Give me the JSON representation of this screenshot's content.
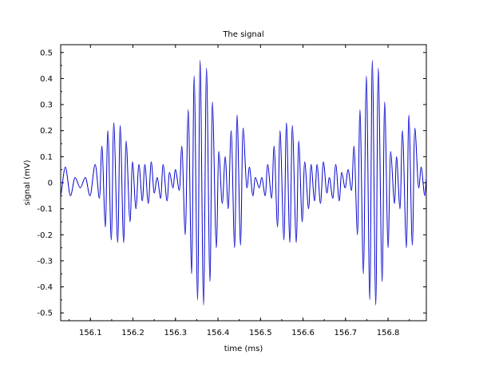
{
  "chart_data": {
    "type": "line",
    "title": "The signal",
    "xlabel": "time (ms)",
    "ylabel": "signal (mV)",
    "xlim": [
      156.03,
      156.89
    ],
    "ylim": [
      -0.53,
      0.53
    ],
    "xticks": [
      156.1,
      156.2,
      156.3,
      156.4,
      156.5,
      156.6,
      156.7,
      156.8
    ],
    "xtick_labels": [
      "156.1",
      "156.2",
      "156.3",
      "156.4",
      "156.5",
      "156.6",
      "156.7",
      "156.8"
    ],
    "yticks": [
      0.5,
      0.4,
      0.3,
      0.2,
      0.1,
      0,
      -0.1,
      -0.2,
      -0.3,
      -0.4,
      -0.5
    ],
    "ytick_labels": [
      "0.5",
      "0.4",
      "0.3",
      "0.2",
      "0.1",
      "0",
      "-0.1",
      "-0.2",
      "-0.3",
      "-0.4",
      "-0.5"
    ],
    "grid": false,
    "line_color": "#0000cc",
    "series": [
      {
        "x": [
          156.03,
          156.041,
          156.053,
          156.064,
          156.076,
          156.088,
          156.099,
          156.111,
          156.121,
          156.127,
          156.135,
          156.141,
          156.149,
          156.155,
          156.164,
          156.17,
          156.178,
          156.184,
          156.193,
          156.199,
          156.207,
          156.214,
          156.222,
          156.228,
          156.236,
          156.243,
          156.25,
          156.257,
          156.265,
          156.271,
          156.28,
          156.286,
          156.294,
          156.3,
          156.309,
          156.315,
          156.323,
          156.33,
          156.338,
          156.344,
          156.352,
          156.358,
          156.366,
          156.373,
          156.381,
          156.387,
          156.396,
          156.402,
          156.41,
          156.417,
          156.424,
          156.431,
          156.439,
          156.445,
          156.453,
          156.459,
          156.468,
          156.474,
          156.482,
          156.488,
          156.497,
          156.503,
          156.511,
          156.517,
          156.526,
          156.532,
          156.54,
          156.546,
          156.555,
          156.561,
          156.569,
          156.575,
          156.584,
          156.59,
          156.598,
          156.604,
          156.613,
          156.619,
          156.627,
          156.633,
          156.641,
          156.648,
          156.656,
          156.662,
          156.67,
          156.677,
          156.685,
          156.691,
          156.699,
          156.706,
          156.714,
          156.72,
          156.728,
          156.734,
          156.742,
          156.749,
          156.757,
          156.763,
          156.771,
          156.777,
          156.786,
          156.792,
          156.8,
          156.806,
          156.815,
          156.82,
          156.828,
          156.834,
          156.843,
          156.849,
          156.857,
          156.863,
          156.872,
          156.878,
          156.886,
          156.89
        ],
        "y": [
          -0.05,
          0.06,
          -0.05,
          0.02,
          -0.02,
          0.02,
          -0.05,
          0.07,
          -0.06,
          0.14,
          -0.17,
          0.2,
          -0.22,
          0.23,
          -0.23,
          0.22,
          -0.23,
          0.16,
          -0.15,
          0.08,
          -0.1,
          0.07,
          -0.07,
          0.07,
          -0.08,
          0.08,
          -0.04,
          0.02,
          -0.06,
          0.07,
          -0.07,
          0.04,
          -0.02,
          0.05,
          -0.03,
          0.14,
          -0.2,
          0.28,
          -0.35,
          0.41,
          -0.45,
          0.47,
          -0.47,
          0.44,
          -0.38,
          0.31,
          -0.25,
          0.12,
          -0.08,
          0.1,
          -0.1,
          0.2,
          -0.25,
          0.26,
          -0.24,
          0.21,
          -0.02,
          0.06,
          -0.05,
          0.02,
          -0.02,
          0.02,
          -0.05,
          0.07,
          -0.06,
          0.14,
          -0.17,
          0.2,
          -0.22,
          0.23,
          -0.23,
          0.22,
          -0.23,
          0.16,
          -0.15,
          0.08,
          -0.1,
          0.07,
          -0.07,
          0.07,
          -0.08,
          0.08,
          -0.04,
          0.02,
          -0.06,
          0.07,
          -0.07,
          0.04,
          -0.02,
          0.05,
          -0.03,
          0.14,
          -0.2,
          0.28,
          -0.35,
          0.41,
          -0.45,
          0.47,
          -0.47,
          0.44,
          -0.38,
          0.31,
          -0.25,
          0.12,
          -0.08,
          0.1,
          -0.1,
          0.2,
          -0.25,
          0.26,
          -0.24,
          0.21,
          -0.02,
          0.06,
          -0.05,
          0.02
        ]
      }
    ]
  }
}
